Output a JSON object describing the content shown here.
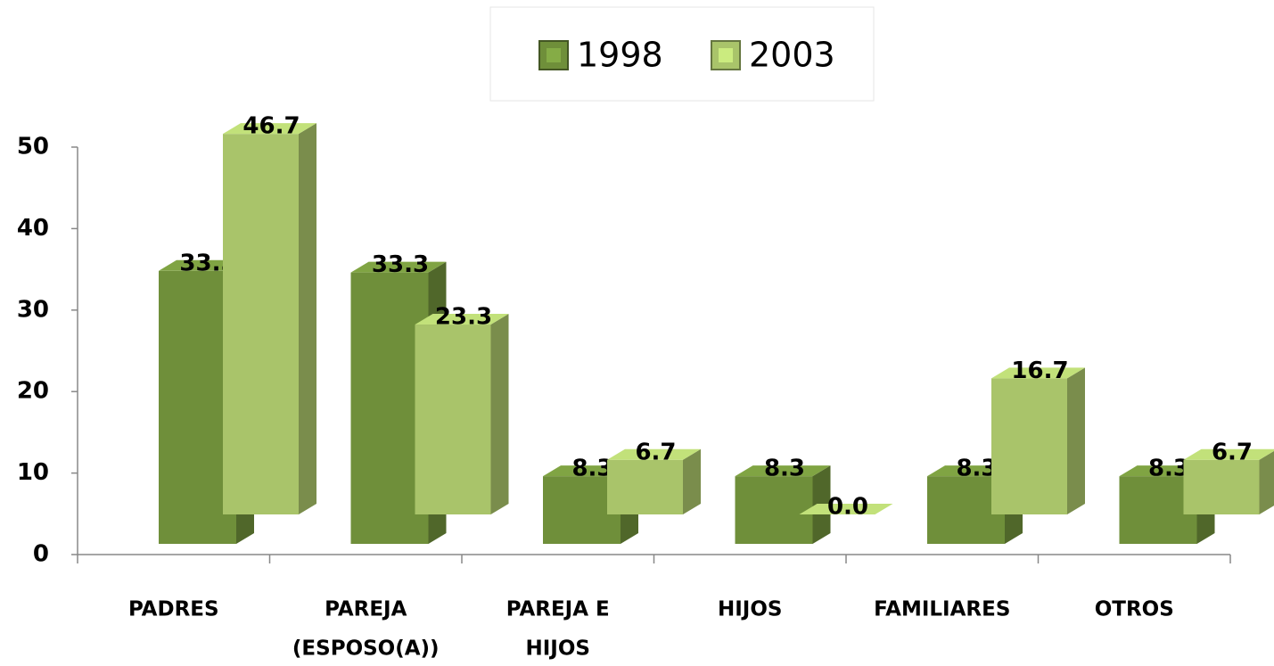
{
  "chart_data": {
    "type": "bar3d",
    "categories": [
      [
        "PADRES"
      ],
      [
        "PAREJA",
        "(ESPOSO(A))"
      ],
      [
        "PAREJA E",
        "HIJOS"
      ],
      [
        "HIJOS"
      ],
      [
        "FAMILIARES"
      ],
      [
        "OTROS"
      ]
    ],
    "series": [
      {
        "name": "1998",
        "color": "#6f8f3a",
        "values": [
          33.5,
          33.3,
          8.3,
          8.3,
          8.3,
          8.3
        ]
      },
      {
        "name": "2003",
        "color": "#a9c46a",
        "values": [
          46.7,
          23.3,
          6.7,
          0.0,
          16.7,
          6.7
        ],
        "value_labels": [
          "46.7",
          "23.3",
          "6.7",
          "0.0",
          "16.7",
          "6.7"
        ]
      }
    ],
    "ylim": [
      0,
      50
    ],
    "yticks": [
      0,
      10,
      20,
      30,
      40,
      50
    ],
    "legend": "top"
  }
}
